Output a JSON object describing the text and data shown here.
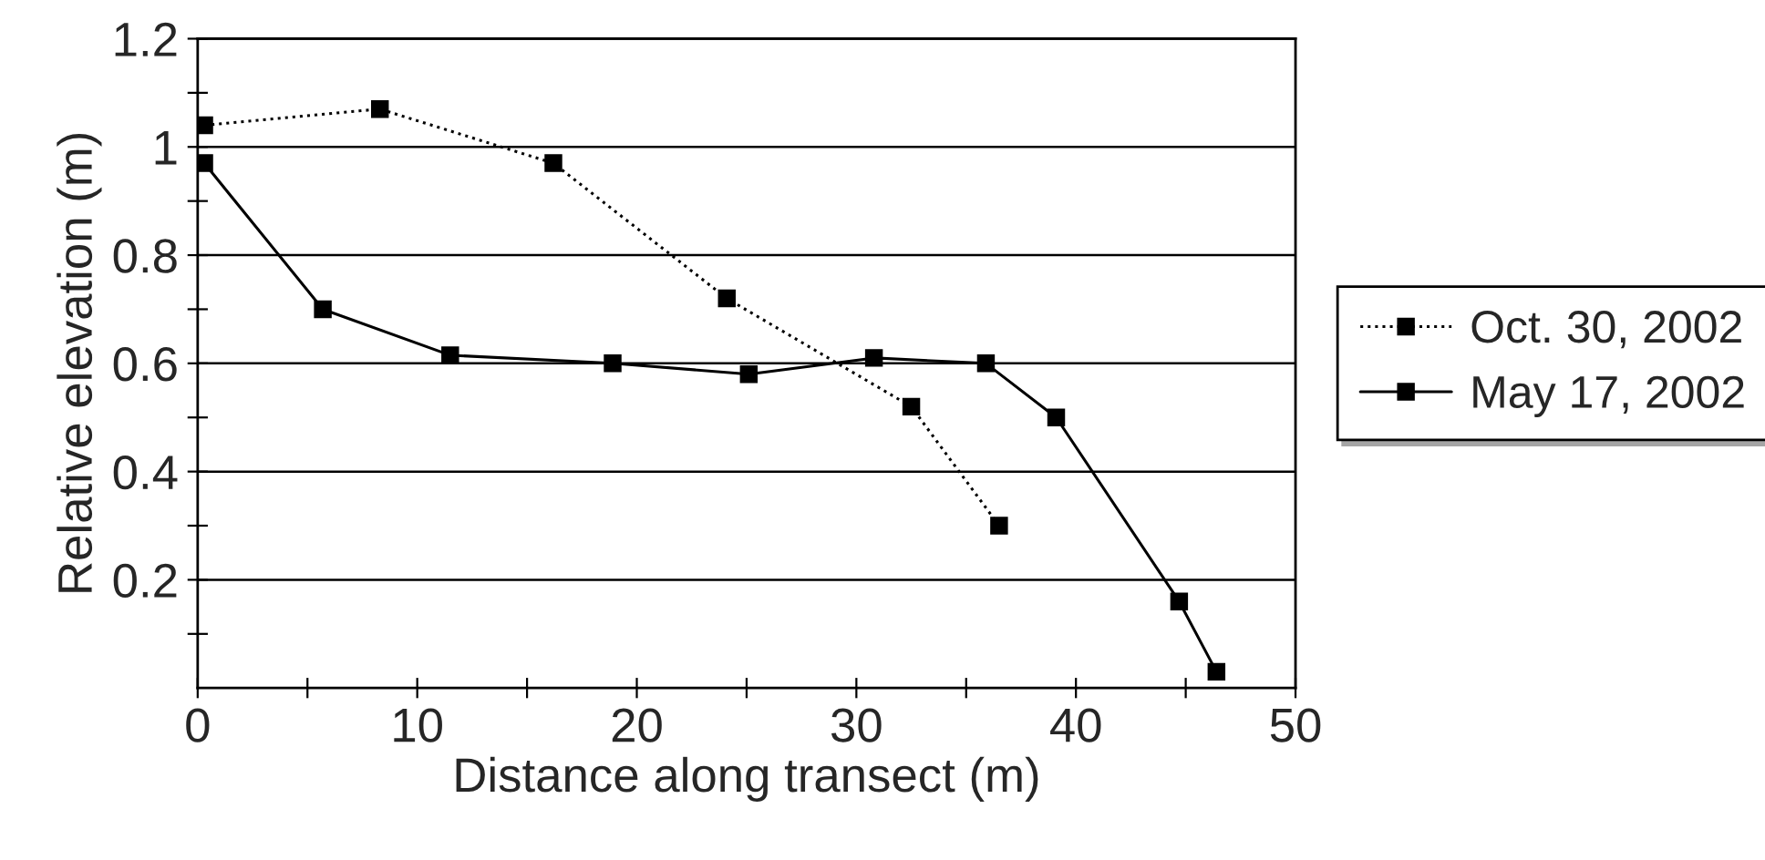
{
  "chart_data": {
    "type": "line",
    "xlabel": "Distance along transect (m)",
    "ylabel": "Relative elevation (m)",
    "xlim": [
      0,
      50
    ],
    "ylim": [
      0,
      1.2
    ],
    "xticks": [
      0,
      {
        "value": 5,
        "label": null
      },
      10,
      {
        "value": 15,
        "label": null
      },
      20,
      {
        "value": 25,
        "label": null
      },
      30,
      {
        "value": 35,
        "label": null
      },
      40,
      {
        "value": 45,
        "label": null
      },
      50
    ],
    "yticks": [
      {
        "value": 0.1,
        "label": null
      },
      0.2,
      {
        "value": 0.3,
        "label": null
      },
      0.4,
      {
        "value": 0.5,
        "label": null
      },
      0.6,
      {
        "value": 0.7,
        "label": null
      },
      0.8,
      {
        "value": 0.9,
        "label": null
      },
      1,
      {
        "value": 1.1,
        "label": null
      },
      1.2
    ],
    "grid": "y",
    "legend": "right",
    "marker": "square",
    "series": [
      {
        "name": "Oct. 30, 2002",
        "color": "#000000",
        "line_style": "dotted",
        "x": [
          0.3,
          8.3,
          16.2,
          24.1,
          32.5,
          36.5
        ],
        "values": [
          1.04,
          1.07,
          0.97,
          0.72,
          0.52,
          0.3
        ]
      },
      {
        "name": "May 17, 2002",
        "color": "#000000",
        "line_style": "solid",
        "x": [
          0.3,
          5.7,
          11.5,
          18.9,
          25.1,
          30.8,
          35.9,
          39.1,
          44.7,
          46.4
        ],
        "values": [
          0.97,
          0.7,
          0.615,
          0.6,
          0.58,
          0.61,
          0.6,
          0.5,
          0.16,
          0.03
        ]
      }
    ]
  }
}
